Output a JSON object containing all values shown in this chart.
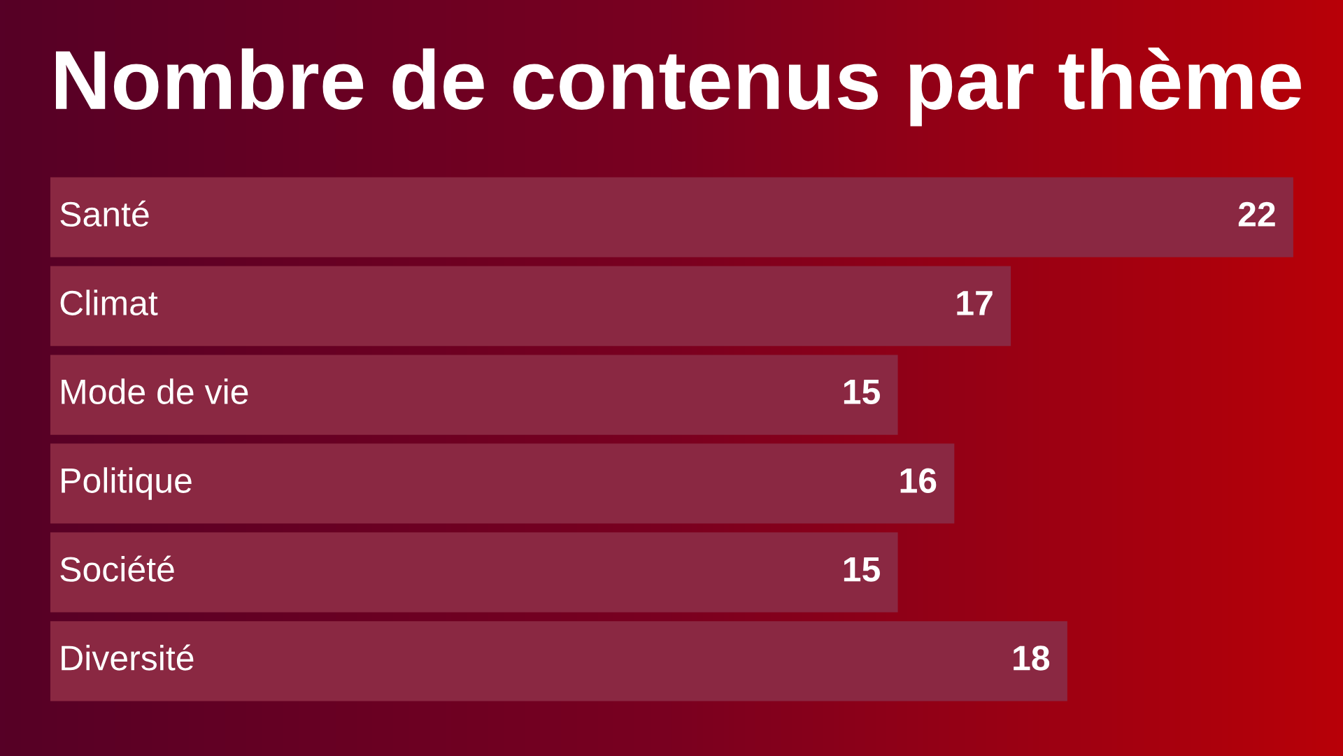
{
  "chart_data": {
    "type": "bar",
    "orientation": "horizontal",
    "title": "Nombre de contenus par thème",
    "categories": [
      "Santé",
      "Climat",
      "Mode de vie",
      "Politique",
      "Société",
      "Diversité"
    ],
    "values": [
      22,
      17,
      15,
      16,
      15,
      18
    ],
    "color": "#8a2842",
    "data_labels": true,
    "legend": false,
    "tick_labels": false
  }
}
